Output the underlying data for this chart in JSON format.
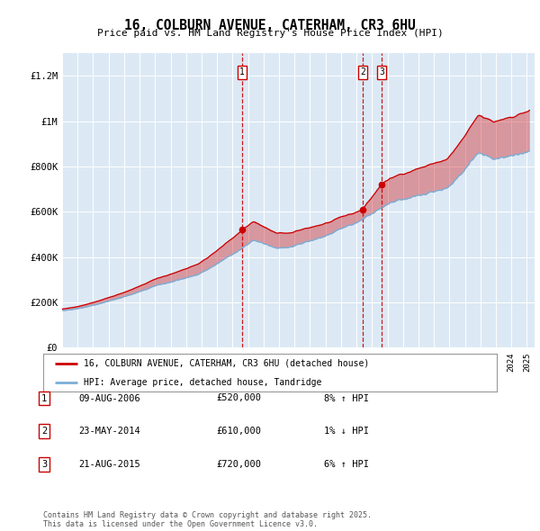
{
  "title": "16, COLBURN AVENUE, CATERHAM, CR3 6HU",
  "subtitle": "Price paid vs. HM Land Registry's House Price Index (HPI)",
  "ylim": [
    0,
    1300000
  ],
  "yticks": [
    0,
    200000,
    400000,
    600000,
    800000,
    1000000,
    1200000
  ],
  "ytick_labels": [
    "£0",
    "£200K",
    "£400K",
    "£600K",
    "£800K",
    "£1M",
    "£1.2M"
  ],
  "bg_color": "#dce9f5",
  "red_line_color": "#cc0000",
  "blue_line_color": "#7aaed6",
  "grid_color": "#ffffff",
  "sale_prices": [
    520000,
    610000,
    720000
  ],
  "sale_labels": [
    "1",
    "2",
    "3"
  ],
  "sale_date_labels": [
    "09-AUG-2006",
    "23-MAY-2014",
    "21-AUG-2015"
  ],
  "sale_price_labels": [
    "£520,000",
    "£610,000",
    "£720,000"
  ],
  "sale_hpi_labels": [
    "8% ↑ HPI",
    "1% ↓ HPI",
    "6% ↑ HPI"
  ],
  "legend_red_label": "16, COLBURN AVENUE, CATERHAM, CR3 6HU (detached house)",
  "legend_blue_label": "HPI: Average price, detached house, Tandridge",
  "footer": "Contains HM Land Registry data © Crown copyright and database right 2025.\nThis data is licensed under the Open Government Licence v3.0."
}
